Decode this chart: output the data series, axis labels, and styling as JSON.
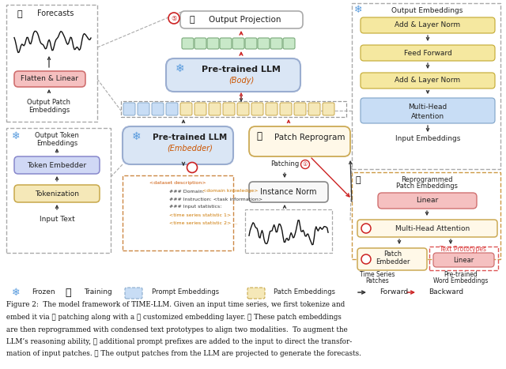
{
  "fig_width": 6.4,
  "fig_height": 4.67,
  "dpi": 100,
  "bg_color": "#ffffff",
  "caption_lines": [
    "Figure 2:  The model framework of TIME-LLM. Given an input time series, we first tokenize and",
    "embed it via ① patching along with a ② customized embedding layer. ③ These patch embeddings",
    "are then reprogrammed with condensed text prototypes to align two modalities.  To augment the",
    "LLM’s reasoning ability, ④ additional prompt prefixes are added to the input to direct the transfor-",
    "mation of input patches. ⑤ The output patches from the LLM are projected to generate the forecasts."
  ]
}
